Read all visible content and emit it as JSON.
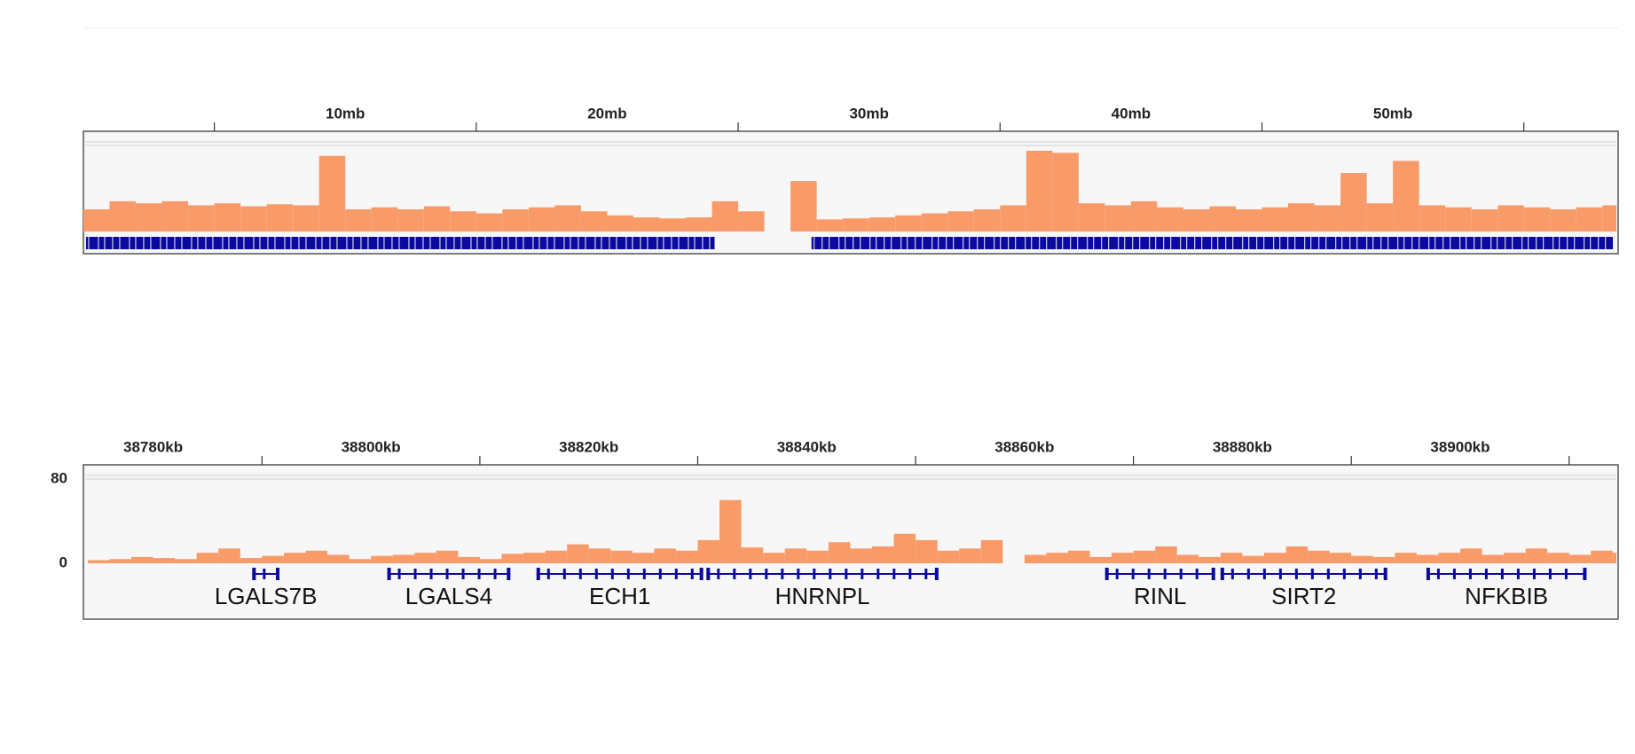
{
  "chart_data": [
    {
      "type": "coverage",
      "xlim": [
        0,
        58.6
      ],
      "xticks": [
        {
          "value": 10,
          "label": "10mb"
        },
        {
          "value": 20,
          "label": "20mb"
        },
        {
          "value": 30,
          "label": "30mb"
        },
        {
          "value": 40,
          "label": "40mb"
        },
        {
          "value": 50,
          "label": "50mb"
        }
      ],
      "xtick_marks": [
        5,
        15,
        25,
        35,
        45,
        55
      ],
      "x": [
        0,
        1,
        2,
        3,
        4,
        5,
        6,
        7,
        8,
        9,
        10,
        11,
        12,
        13,
        14,
        15,
        16,
        17,
        18,
        19,
        20,
        21,
        22,
        23,
        24,
        25,
        26,
        27,
        28,
        29,
        30,
        31,
        32,
        33,
        34,
        35,
        36,
        37,
        38,
        39,
        40,
        41,
        42,
        43,
        44,
        45,
        46,
        47,
        48,
        49,
        50,
        51,
        52,
        53,
        54,
        55,
        56,
        57,
        58
      ],
      "values": [
        22,
        30,
        28,
        30,
        26,
        28,
        25,
        27,
        26,
        75,
        22,
        24,
        22,
        25,
        20,
        18,
        22,
        24,
        26,
        20,
        16,
        14,
        13,
        14,
        30,
        20,
        null,
        50,
        12,
        13,
        14,
        16,
        18,
        20,
        22,
        26,
        80,
        78,
        28,
        26,
        30,
        24,
        22,
        25,
        22,
        24,
        28,
        26,
        58,
        28,
        70,
        26,
        24,
        22,
        26,
        24,
        22,
        24,
        26
      ],
      "color": "#f99b68",
      "gene_regions": [
        [
          0.1,
          24.1
        ],
        [
          27.8,
          58.4
        ]
      ],
      "gene_color": "#0a0a9c"
    },
    {
      "type": "coverage",
      "xlim": [
        38773.6,
        38914.5
      ],
      "xticks": [
        {
          "value": 38780,
          "label": "38780kb"
        },
        {
          "value": 38800,
          "label": "38800kb"
        },
        {
          "value": 38820,
          "label": "38820kb"
        },
        {
          "value": 38840,
          "label": "38840kb"
        },
        {
          "value": 38860,
          "label": "38860kb"
        },
        {
          "value": 38880,
          "label": "38880kb"
        },
        {
          "value": 38900,
          "label": "38900kb"
        }
      ],
      "xtick_marks": [
        38790,
        38810,
        38830,
        38850,
        38870,
        38890,
        38910
      ],
      "ylim": [
        0,
        80
      ],
      "yticks": [
        0,
        80
      ],
      "x": [
        38774,
        38776,
        38778,
        38780,
        38782,
        38784,
        38786,
        38788,
        38790,
        38792,
        38794,
        38796,
        38798,
        38800,
        38802,
        38804,
        38806,
        38808,
        38810,
        38812,
        38814,
        38816,
        38818,
        38820,
        38822,
        38824,
        38826,
        38828,
        38830,
        38832,
        38834,
        38836,
        38838,
        38840,
        38842,
        38844,
        38846,
        38848,
        38850,
        38852,
        38854,
        38856,
        38858,
        38860,
        38862,
        38864,
        38866,
        38868,
        38870,
        38872,
        38874,
        38876,
        38878,
        38880,
        38882,
        38884,
        38886,
        38888,
        38890,
        38892,
        38894,
        38896,
        38898,
        38900,
        38902,
        38904,
        38906,
        38908,
        38910,
        38912,
        38914
      ],
      "values": [
        3,
        4,
        6,
        5,
        4,
        10,
        14,
        5,
        7,
        10,
        12,
        8,
        4,
        7,
        8,
        10,
        12,
        6,
        4,
        9,
        10,
        12,
        18,
        14,
        12,
        10,
        14,
        12,
        22,
        60,
        15,
        10,
        14,
        12,
        20,
        14,
        16,
        28,
        22,
        12,
        14,
        22,
        0,
        8,
        10,
        12,
        6,
        10,
        12,
        16,
        8,
        6,
        10,
        7,
        10,
        16,
        12,
        10,
        7,
        6,
        10,
        8,
        10,
        14,
        8,
        10,
        14,
        10,
        8,
        12,
        10
      ],
      "color": "#f99b68",
      "gene_color": "#0a0a9c",
      "genes": [
        {
          "name": "LGALS7B",
          "start": 38789.1,
          "end": 38791.6
        },
        {
          "name": "LGALS4",
          "start": 38801.5,
          "end": 38812.8
        },
        {
          "name": "ECH1",
          "start": 38815.2,
          "end": 38830.5
        },
        {
          "name": "HNRNPL",
          "start": 38830.8,
          "end": 38852.1
        },
        {
          "name": "RINL",
          "start": 38867.4,
          "end": 38877.5
        },
        {
          "name": "SIRT2",
          "start": 38878.0,
          "end": 38893.3
        },
        {
          "name": "NFKBIB",
          "start": 38896.9,
          "end": 38911.6
        }
      ]
    }
  ]
}
